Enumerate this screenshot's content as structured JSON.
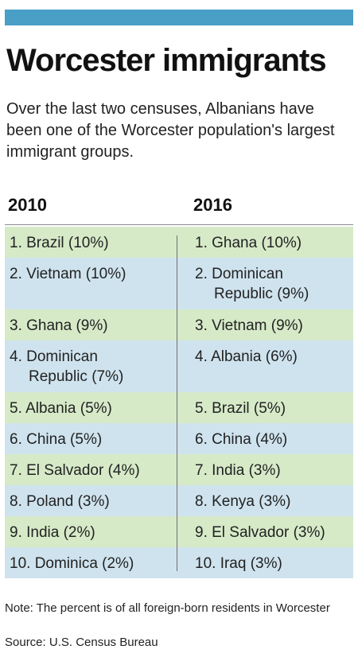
{
  "title": "Worcester immigrants",
  "subtitle": "Over the last two censuses, Albanians have been one of the Worcester population's largest immigrant groups.",
  "columns": [
    "2010",
    "2016"
  ],
  "colors": {
    "top_bar": "#4a9fc6",
    "row_green": "#d6eac8",
    "row_blue": "#cfe3ee"
  },
  "rows": [
    {
      "left": [
        "1. Brazil (10%)"
      ],
      "right": [
        "1. Ghana (10%)"
      ]
    },
    {
      "left": [
        "2. Vietnam (10%)"
      ],
      "right": [
        "2. Dominican",
        "Republic (9%)"
      ]
    },
    {
      "left": [
        "3. Ghana (9%)"
      ],
      "right": [
        "3. Vietnam (9%)"
      ]
    },
    {
      "left": [
        "4. Dominican",
        "Republic (7%)"
      ],
      "right": [
        "4. Albania (6%)"
      ]
    },
    {
      "left": [
        "5. Albania (5%)"
      ],
      "right": [
        "5. Brazil (5%)"
      ]
    },
    {
      "left": [
        "6. China (5%)"
      ],
      "right": [
        "6. China (4%)"
      ]
    },
    {
      "left": [
        "7. El Salvador (4%)"
      ],
      "right": [
        "7. India (3%)"
      ]
    },
    {
      "left": [
        "8. Poland (3%)"
      ],
      "right": [
        "8. Kenya (3%)"
      ]
    },
    {
      "left": [
        "9. India (2%)"
      ],
      "right": [
        "9. El Salvador (3%)"
      ]
    },
    {
      "left": [
        "10. Dominica (2%)"
      ],
      "right": [
        "10. Iraq (3%)"
      ]
    }
  ],
  "note": "Note: The percent is of all foreign-born residents in Worcester",
  "source": "Source: U.S. Census Bureau"
}
